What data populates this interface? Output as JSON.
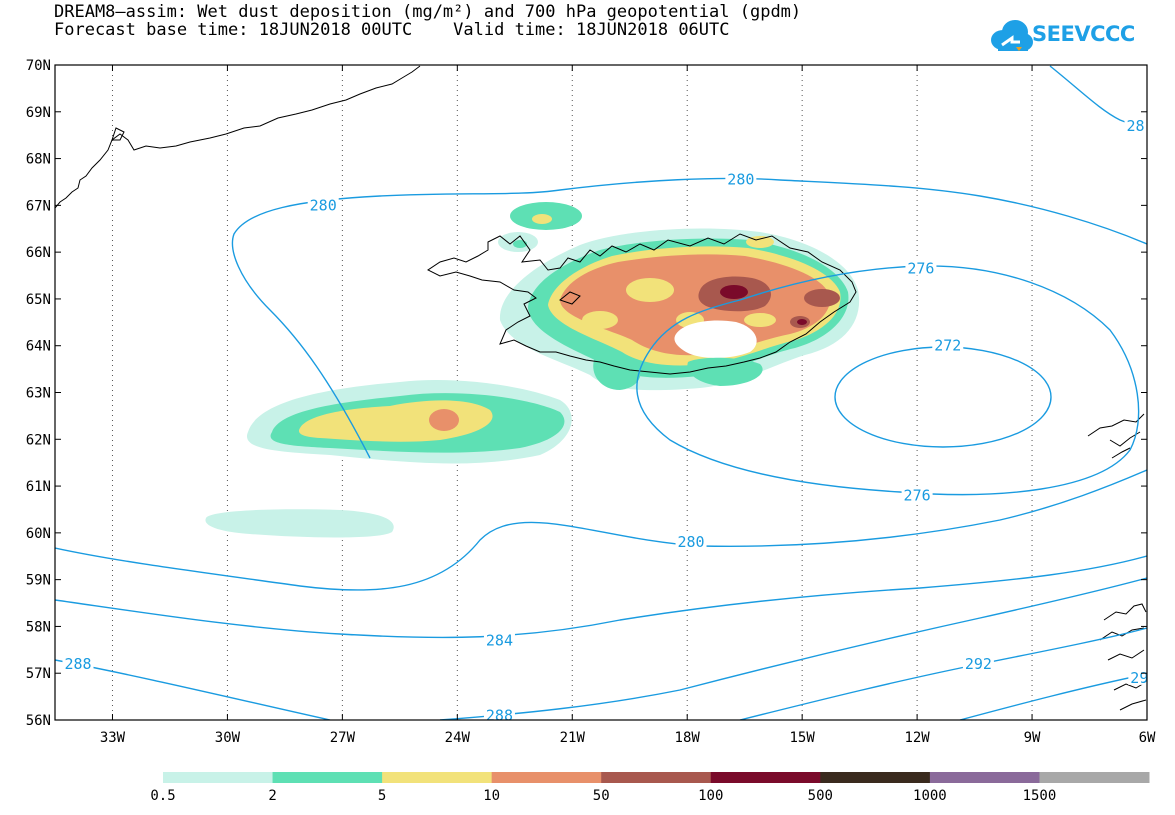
{
  "header": {
    "title_line1": "DREAM8–assim: Wet dust deposition (mg/m²) and 700 hPa geopotential (gpdm)",
    "title_line2": "Forecast base time: 18JUN2018 00UTC    Valid time: 18JUN2018 06UTC",
    "logo_text": "SEEVCCC"
  },
  "map": {
    "lat_labels": [
      "70N",
      "69N",
      "68N",
      "67N",
      "66N",
      "65N",
      "64N",
      "63N",
      "62N",
      "61N",
      "60N",
      "59N",
      "58N",
      "57N",
      "56N"
    ],
    "lon_labels": [
      "33W",
      "30W",
      "27W",
      "24W",
      "21W",
      "18W",
      "15W",
      "12W",
      "9W",
      "6W"
    ],
    "contour_labels": [
      {
        "text": "280",
        "lon": -27.5,
        "lat": 67.0
      },
      {
        "text": "280",
        "lon": -16.6,
        "lat": 67.55
      },
      {
        "text": "28",
        "lon": -6.3,
        "lat": 68.7
      },
      {
        "text": "276",
        "lon": -11.9,
        "lat": 65.65
      },
      {
        "text": "272",
        "lon": -11.2,
        "lat": 64.0
      },
      {
        "text": "276",
        "lon": -12.0,
        "lat": 60.8
      },
      {
        "text": "280",
        "lon": -17.9,
        "lat": 59.8
      },
      {
        "text": "284",
        "lon": -22.9,
        "lat": 57.7
      },
      {
        "text": "288",
        "lon": -33.9,
        "lat": 57.2
      },
      {
        "text": "288",
        "lon": -22.9,
        "lat": 56.1
      },
      {
        "text": "292",
        "lon": -10.4,
        "lat": 57.2
      },
      {
        "text": "29",
        "lon": -6.2,
        "lat": 56.9
      }
    ]
  },
  "legend": {
    "labels": [
      "0.5",
      "2",
      "5",
      "10",
      "50",
      "100",
      "500",
      "1000",
      "1500"
    ],
    "colors": [
      "#c8f2e8",
      "#5ee0b4",
      "#f2e27a",
      "#e8906a",
      "#a8584e",
      "#7a0a2a",
      "#3a2a1e",
      "#8a6a9a",
      "#a8a8a8"
    ]
  },
  "colors": {
    "contour": "#1a9be0",
    "coast": "#000000",
    "brand": "#1ea0e6"
  }
}
